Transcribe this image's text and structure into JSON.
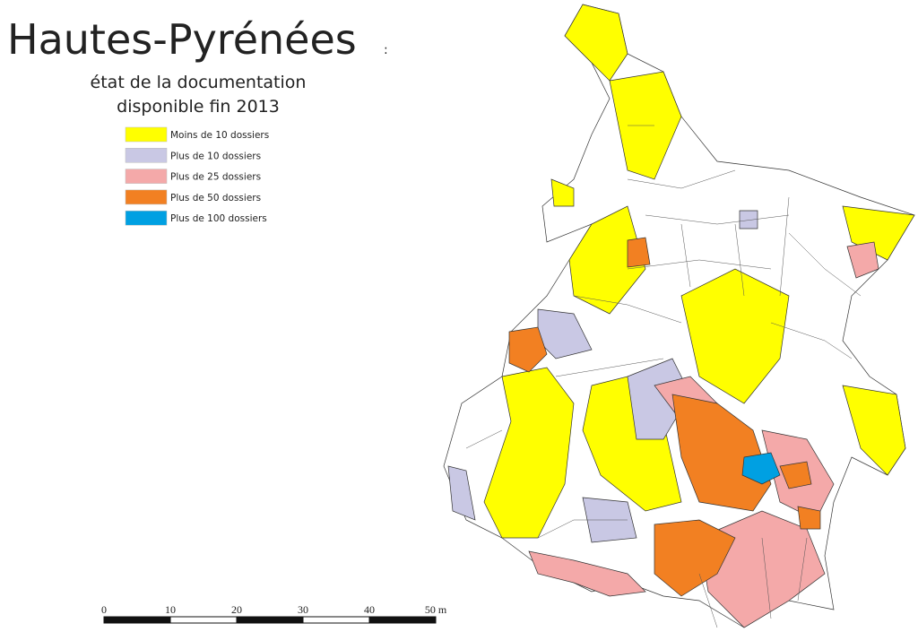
{
  "header": {
    "title": "Hautes-Pyrénées",
    "title_suffix": ":",
    "subtitle": [
      "état de la documentation",
      "disponible fin 2013"
    ]
  },
  "legend": [
    {
      "label": "Moins de 10 dossiers",
      "color": "#ffff00"
    },
    {
      "label": "Plus de 10 dossiers",
      "color": "#c9c8e4"
    },
    {
      "label": "Plus de 25 dossiers",
      "color": "#f4a9a9"
    },
    {
      "label": "Plus de 50 dossiers",
      "color": "#f28022"
    },
    {
      "label": "Plus de 100 dossiers",
      "color": "#00a0e2"
    }
  ],
  "scale": {
    "labels": [
      "0",
      "10",
      "20",
      "30",
      "40",
      "50 m"
    ]
  }
}
